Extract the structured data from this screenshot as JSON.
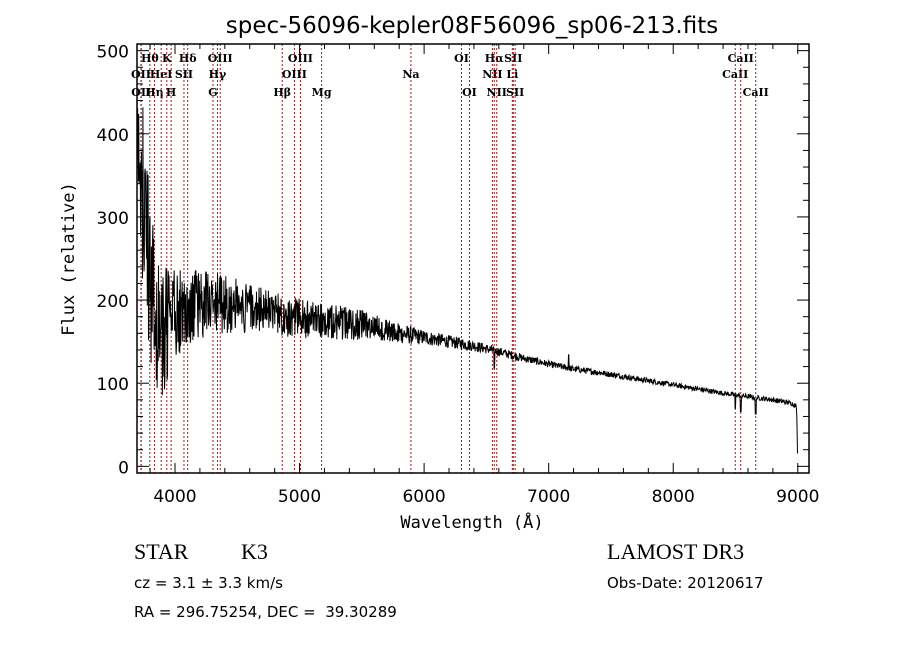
{
  "chart_data": {
    "type": "line",
    "title": "spec-56096-kepler08F56096_sp06-213.fits",
    "xlabel": "Wavelength (Å)",
    "ylabel": "Flux (relative)",
    "xlim": [
      3695,
      9090
    ],
    "ylim": [
      -8,
      508
    ],
    "xticks": [
      4000,
      5000,
      6000,
      7000,
      8000,
      9000
    ],
    "xtick_labels": [
      "4000",
      "5000",
      "6000",
      "7000",
      "8000",
      "9000"
    ],
    "xminor_step": 200,
    "yticks": [
      0,
      100,
      200,
      300,
      400,
      500
    ],
    "ytick_labels": [
      "0",
      "100",
      "200",
      "300",
      "400",
      "500"
    ],
    "yminor_step": 20,
    "grid": false,
    "series": [
      {
        "name": "spectrum",
        "color": "#000000",
        "wavelength_start": 3700,
        "wavelength_end": 9000,
        "continuum_anchors": [
          [
            3700,
            380
          ],
          [
            3740,
            330
          ],
          [
            3780,
            260
          ],
          [
            3820,
            200
          ],
          [
            3860,
            175
          ],
          [
            3900,
            165
          ],
          [
            3950,
            170
          ],
          [
            4000,
            185
          ],
          [
            4100,
            190
          ],
          [
            4200,
            195
          ],
          [
            4400,
            195
          ],
          [
            4600,
            190
          ],
          [
            4800,
            185
          ],
          [
            5000,
            178
          ],
          [
            5200,
            175
          ],
          [
            5400,
            172
          ],
          [
            5600,
            168
          ],
          [
            5800,
            160
          ],
          [
            6000,
            155
          ],
          [
            6200,
            150
          ],
          [
            6400,
            145
          ],
          [
            6600,
            138
          ],
          [
            6800,
            130
          ],
          [
            7000,
            123
          ],
          [
            7200,
            117
          ],
          [
            7400,
            113
          ],
          [
            7600,
            108
          ],
          [
            7800,
            103
          ],
          [
            8000,
            98
          ],
          [
            8200,
            93
          ],
          [
            8400,
            88
          ],
          [
            8600,
            84
          ],
          [
            8800,
            80
          ],
          [
            8950,
            76
          ],
          [
            8990,
            72
          ],
          [
            9000,
            5
          ]
        ],
        "noise_anchors": [
          [
            3700,
            110
          ],
          [
            3800,
            100
          ],
          [
            3900,
            80
          ],
          [
            4000,
            55
          ],
          [
            4100,
            45
          ],
          [
            4300,
            38
          ],
          [
            4600,
            30
          ],
          [
            5000,
            24
          ],
          [
            5400,
            20
          ],
          [
            5700,
            14
          ],
          [
            6000,
            9
          ],
          [
            6500,
            6
          ],
          [
            7000,
            4
          ],
          [
            8000,
            3
          ],
          [
            9000,
            3
          ]
        ],
        "features": [
          {
            "wavelength": 7160,
            "flux": 134,
            "kind": "spike"
          },
          {
            "wavelength": 6563,
            "flux": 118,
            "kind": "absorption"
          },
          {
            "wavelength": 8498,
            "flux": 70,
            "kind": "absorption"
          },
          {
            "wavelength": 8542,
            "flux": 66,
            "kind": "absorption"
          },
          {
            "wavelength": 8662,
            "flux": 63,
            "kind": "absorption"
          }
        ]
      }
    ],
    "line_markers": {
      "color": "#a01818",
      "lines": [
        {
          "label": "OII",
          "wavelength": 3727,
          "row": 2
        },
        {
          "label": "OII",
          "wavelength": 3729,
          "row": 3
        },
        {
          "label": "Hθ",
          "wavelength": 3798,
          "row": 1
        },
        {
          "label": "Hη",
          "wavelength": 3835,
          "row": 3
        },
        {
          "label": "HeI",
          "wavelength": 3889,
          "row": 2
        },
        {
          "label": "K",
          "wavelength": 3934,
          "row": 1
        },
        {
          "label": "H",
          "wavelength": 3969,
          "row": 3
        },
        {
          "label": "SII",
          "wavelength": 4072,
          "row": 2
        },
        {
          "label": "Hδ",
          "wavelength": 4102,
          "row": 1
        },
        {
          "label": "G",
          "wavelength": 4305,
          "row": 3
        },
        {
          "label": "Hγ",
          "wavelength": 4341,
          "row": 2
        },
        {
          "label": "OIII",
          "wavelength": 4363,
          "row": 1
        },
        {
          "label": "Hβ",
          "wavelength": 4861,
          "row": 3
        },
        {
          "label": "OIII",
          "wavelength": 4959,
          "row": 2
        },
        {
          "label": "OIII",
          "wavelength": 5007,
          "row": 1
        },
        {
          "label": "Mg",
          "wavelength": 5177,
          "row": 3
        },
        {
          "label": "Na",
          "wavelength": 5894,
          "row": 2
        },
        {
          "label": "OI",
          "wavelength": 6300,
          "row": 1
        },
        {
          "label": "OI",
          "wavelength": 6364,
          "row": 3
        },
        {
          "label": "NII",
          "wavelength": 6548,
          "row": 2
        },
        {
          "label": "Hα",
          "wavelength": 6563,
          "row": 1
        },
        {
          "label": "NII",
          "wavelength": 6583,
          "row": 3
        },
        {
          "label": "Li",
          "wavelength": 6708,
          "row": 2
        },
        {
          "label": "SII",
          "wavelength": 6716,
          "row": 1
        },
        {
          "label": "SII",
          "wavelength": 6731,
          "row": 3
        },
        {
          "label": "CaII",
          "wavelength": 8498,
          "row": 2
        },
        {
          "label": "CaII",
          "wavelength": 8542,
          "row": 1
        },
        {
          "label": "CaII",
          "wavelength": 8662,
          "row": 3
        }
      ]
    }
  },
  "info": {
    "object_class": "STAR",
    "subclass": "K3",
    "redshift_line": "cz = 3.1 ± 3.3 km/s",
    "coords_line": "RA = 296.75254, DEC =  39.30289",
    "survey": "LAMOST DR3",
    "obs_date_line": "Obs-Date: 20120617"
  }
}
